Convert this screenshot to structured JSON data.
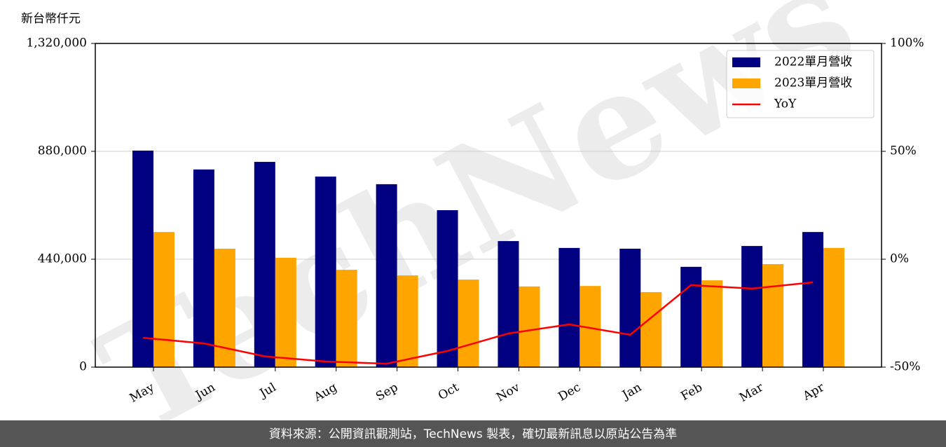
{
  "chart_data": {
    "type": "bar_line",
    "y_axis_label": "新台幣仟元",
    "watermark": "TechNews",
    "footer": "資料來源：公開資訊觀測站，TechNews 製表，確切最新訊息以原站公告為準",
    "categories": [
      "May",
      "Jun",
      "Jul",
      "Aug",
      "Sep",
      "Oct",
      "Nov",
      "Dec",
      "Jan",
      "Feb",
      "Mar",
      "Apr"
    ],
    "series": [
      {
        "name": "2022單月營收",
        "color": "#000080",
        "type": "bar",
        "values": [
          883000,
          806000,
          837000,
          777000,
          746000,
          640000,
          514000,
          486000,
          483000,
          409000,
          494000,
          551000
        ]
      },
      {
        "name": "2023單月營收",
        "color": "#ffa500",
        "type": "bar",
        "values": [
          551000,
          483000,
          446000,
          397000,
          374000,
          357000,
          329000,
          331000,
          306000,
          354000,
          420000,
          486000
        ]
      },
      {
        "name": "YoY",
        "color": "#ff0000",
        "type": "line",
        "axis": "y2",
        "values": [
          -36.4,
          -39,
          -45,
          -47.4,
          -48.4,
          -42.5,
          -34.4,
          -30.2,
          -35,
          -12,
          -13.6,
          -10.7
        ]
      }
    ],
    "ylim": [
      0,
      1320000
    ],
    "yticks": [
      {
        "value": 0,
        "label": "0"
      },
      {
        "value": 440000,
        "label": "440,000"
      },
      {
        "value": 880000,
        "label": "880,000"
      },
      {
        "value": 1320000,
        "label": "1,320,000"
      }
    ],
    "y2lim": [
      -50,
      100
    ],
    "y2ticks": [
      {
        "value": -50,
        "label": "-50%"
      },
      {
        "value": 0,
        "label": "0%"
      },
      {
        "value": 50,
        "label": "50%"
      },
      {
        "value": 100,
        "label": "100%"
      }
    ],
    "grid": true,
    "legend": "upper right"
  }
}
